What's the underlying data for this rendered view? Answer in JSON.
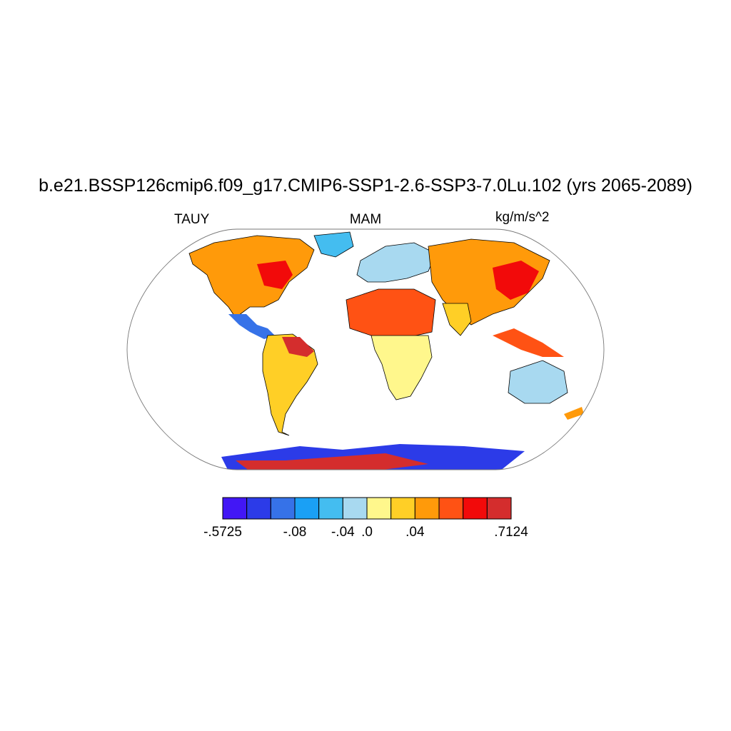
{
  "title": "b.e21.BSSP126cmip6.f09_g17.CMIP6-SSP1-2.6-SSP3-7.0Lu.102 (yrs 2065-2089)",
  "subtitle_left": "TAUY",
  "subtitle_center": "MAM",
  "subtitle_right": "kg/m/s^2",
  "colorbar": {
    "colors": [
      "#4217f5",
      "#2c3be8",
      "#3672e8",
      "#1aa0f5",
      "#44bdf0",
      "#a8d9f0",
      "#fff78c",
      "#ffcf26",
      "#ff9a0a",
      "#ff5214",
      "#f20a0a",
      "#d42d2d"
    ],
    "labels": [
      {
        "text": ".5725",
        "prefix": "-",
        "index": 0
      },
      {
        "text": "-.08",
        "index": 3
      },
      {
        "text": "-.04",
        "index": 5
      },
      {
        "text": ".0",
        "index": 6
      },
      {
        "text": ".04",
        "index": 8
      },
      {
        "text": ".7124",
        "index": 12
      }
    ]
  },
  "map": {
    "projection": "robinson",
    "regions": [
      {
        "name": "north-america",
        "color": "#ff9a0a"
      },
      {
        "name": "east-canada",
        "color": "#f20a0a"
      },
      {
        "name": "greenland",
        "color": "#44bdf0"
      },
      {
        "name": "central-america",
        "color": "#3672e8"
      },
      {
        "name": "south-america",
        "color": "#ffcf26"
      },
      {
        "name": "amazon-east",
        "color": "#d42d2d"
      },
      {
        "name": "europe",
        "color": "#a8d9f0"
      },
      {
        "name": "sahara",
        "color": "#ff5214"
      },
      {
        "name": "africa-south",
        "color": "#fff78c"
      },
      {
        "name": "asia",
        "color": "#ff9a0a"
      },
      {
        "name": "east-asia",
        "color": "#f20a0a"
      },
      {
        "name": "india",
        "color": "#ffcf26"
      },
      {
        "name": "se-asia",
        "color": "#ff5214"
      },
      {
        "name": "australia",
        "color": "#a8d9f0"
      },
      {
        "name": "antarctica",
        "color": "#2c3be8"
      },
      {
        "name": "antarctica-warm",
        "color": "#d42d2d"
      }
    ]
  }
}
